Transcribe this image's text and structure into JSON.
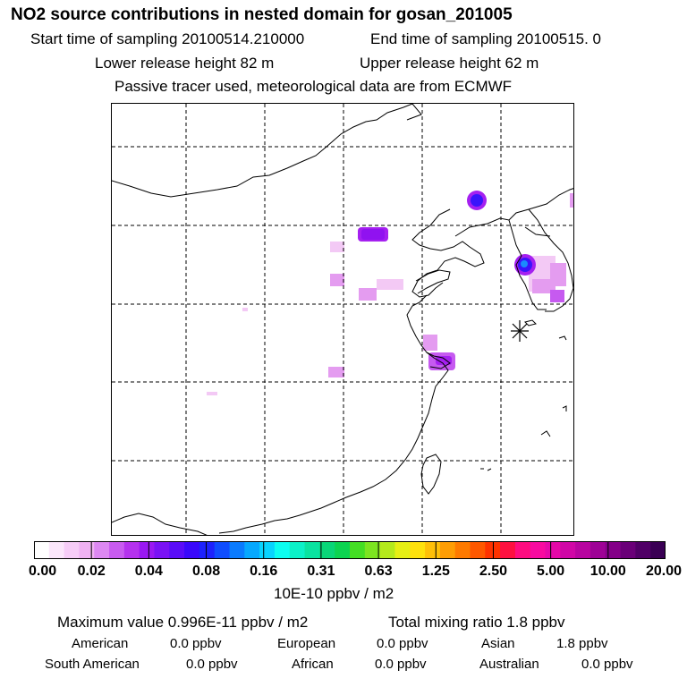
{
  "header": {
    "title": "NO2 source contributions in nested domain for gosan_201005",
    "start_label": "Start time of sampling 20100514.210000",
    "end_label": "End time of sampling 20100515.     0",
    "lower_label": "Lower release height   82 m",
    "upper_label": "Upper release height   62 m",
    "tracer_note": "Passive tracer used, meteorological data are from ECMWF"
  },
  "legend": {
    "tick_labels": [
      "0.00",
      "0.02",
      "0.04",
      "0.08",
      "0.16",
      "0.31",
      "0.63",
      "1.25",
      "2.50",
      "5.00",
      "10.00",
      "20.00"
    ],
    "units": "10E-10 ppbv / m2",
    "colors": [
      "#ffffff",
      "#fbe6fb",
      "#f6ccf7",
      "#f0b2f3",
      "#dd88f2",
      "#c95bf0",
      "#b532ee",
      "#9a18f2",
      "#7a12f5",
      "#5a0cf8",
      "#3a08fb",
      "#1d22fd",
      "#0f4dfe",
      "#0a7bfe",
      "#06a8fe",
      "#08d4fe",
      "#0cfef0",
      "#0bf1c8",
      "#0ae3a0",
      "#09d678",
      "#0cd450",
      "#44de24",
      "#7ce420",
      "#b4ea1c",
      "#e6ef14",
      "#fee10c",
      "#fec008",
      "#fe9d04",
      "#fe7a00",
      "#fe5800",
      "#fe3200",
      "#fe1040",
      "#fe0c80",
      "#f80aa0",
      "#e608a8",
      "#d006a6",
      "#b804a0",
      "#9e0296",
      "#840088",
      "#6a0078",
      "#500066",
      "#3a0054"
    ]
  },
  "summary": {
    "max_label": "Maximum value  0.996E-11 ppbv / m2",
    "total_label": "Total mixing ratio       1.8 ppbv",
    "sources": [
      {
        "name": "American",
        "value": "0.0 ppbv"
      },
      {
        "name": "European",
        "value": "0.0 ppbv"
      },
      {
        "name": "Asian",
        "value": "1.8 ppbv"
      },
      {
        "name": "South American",
        "value": "0.0 ppbv"
      },
      {
        "name": "African",
        "value": "0.0 ppbv"
      },
      {
        "name": "Australian",
        "value": "0.0 ppbv"
      }
    ]
  },
  "map": {
    "receptor_icon": "asterisk-receptor-icon",
    "plume_colors": {
      "faint": "#f3c9f5",
      "light": "#e49cf0",
      "mid": "#c65af0",
      "strong": "#a520f0",
      "peak": "#3a14fb",
      "core": "#1a8cfd"
    }
  }
}
